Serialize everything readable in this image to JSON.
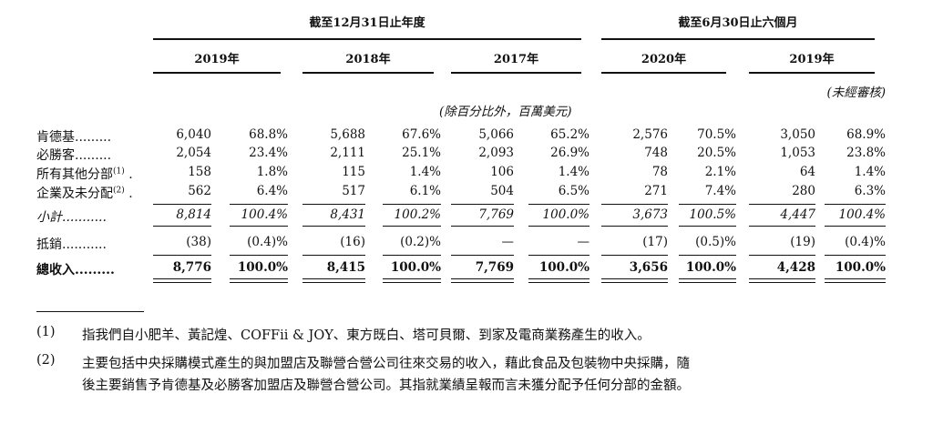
{
  "header": {
    "year_end_group": "截至12月31日止年度",
    "six_month_group": "截至6月30日止六個月",
    "years": [
      "2019年",
      "2018年",
      "2017年",
      "2020年",
      "2019年"
    ],
    "unaudited": "(未經審核)",
    "unit_note": "(除百分比外，百萬美元)"
  },
  "rows": [
    {
      "label": "肯德基.........",
      "cells": [
        "6,040",
        "68.8%",
        "5,688",
        "67.6%",
        "5,066",
        "65.2%",
        "2,576",
        "70.5%",
        "3,050",
        "68.9%"
      ]
    },
    {
      "label": "必勝客.........",
      "cells": [
        "2,054",
        "23.4%",
        "2,111",
        "25.1%",
        "2,093",
        "26.9%",
        "748",
        "20.5%",
        "1,053",
        "23.8%"
      ]
    },
    {
      "label": "所有其他分部",
      "sup": "(1)",
      "suffix": " .",
      "cells": [
        "158",
        "1.8%",
        "115",
        "1.4%",
        "106",
        "1.4%",
        "78",
        "2.1%",
        "64",
        "1.4%"
      ]
    },
    {
      "label": "企業及未分配",
      "sup": "(2)",
      "suffix": " .",
      "cells": [
        "562",
        "6.4%",
        "517",
        "6.1%",
        "504",
        "6.5%",
        "271",
        "7.4%",
        "280",
        "6.3%"
      ]
    },
    {
      "label": "小計...........",
      "italic": true,
      "cells": [
        "8,814",
        "100.4%",
        "8,431",
        "100.2%",
        "7,769",
        "100.0%",
        "3,673",
        "100.5%",
        "4,447",
        "100.4%"
      ]
    },
    {
      "label": "抵銷...........",
      "cells": [
        "(38)",
        "(0.4)%",
        "(16)",
        "(0.2)%",
        "—",
        "—",
        "(17)",
        "(0.5)%",
        "(19)",
        "(0.4)%"
      ]
    },
    {
      "label": "總收入.........",
      "bold": true,
      "cells": [
        "8,776",
        "100.0%",
        "8,415",
        "100.0%",
        "7,769",
        "100.0%",
        "3,656",
        "100.0%",
        "4,428",
        "100.0%"
      ]
    }
  ],
  "notes": [
    {
      "marker": "(1)",
      "text": "指我們自小肥羊、黃記煌、COFFii & JOY、東方既白、塔可貝爾、到家及電商業務產生的收入。"
    },
    {
      "marker": "(2)",
      "text_line1": "主要包括中央採購模式產生的與加盟店及聯營合營公司往來交易的收入，藉此食品及包裝物中央採購，隨",
      "text_line2": "後主要銷售予肯德基及必勝客加盟店及聯營合營公司。其指就業績呈報而言未獲分配予任何分部的金額。"
    }
  ]
}
